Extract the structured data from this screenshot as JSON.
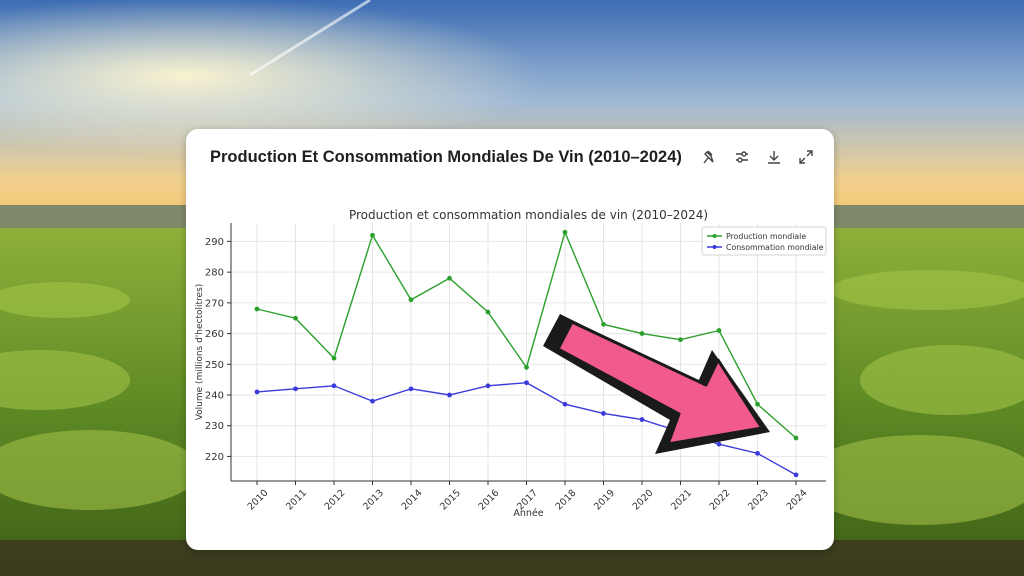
{
  "card": {
    "title": "Production Et Consommation Mondiales De Vin (2010–2024)",
    "tools": [
      "pin-icon",
      "settings-sliders-icon",
      "download-icon",
      "expand-icon"
    ]
  },
  "colors": {
    "production": "#2ca02c",
    "consumption": "#3b3bdc",
    "arrow_fill": "#f05a8c",
    "arrow_outline": "#1a1a1a",
    "sky_top": "#3f6fb5",
    "sky_horizon": "#f3c77a",
    "field": "#6f9a2c"
  },
  "chart_data": {
    "type": "line",
    "title": "Production et consommation mondiales de vin (2010–2024)",
    "xlabel": "Année",
    "ylabel": "Volume (millions d'hectolitres)",
    "x": [
      "2010",
      "2011",
      "2012",
      "2013",
      "2014",
      "2015",
      "2016",
      "2017",
      "2018",
      "2019",
      "2020",
      "2021",
      "2022",
      "2023",
      "2024"
    ],
    "ylim": [
      212,
      296
    ],
    "yticks": [
      220,
      230,
      240,
      250,
      260,
      270,
      280,
      290
    ],
    "grid": true,
    "legend_position": "top-right",
    "series": [
      {
        "name": "Production mondiale",
        "values": [
          268,
          265,
          252,
          292,
          271,
          278,
          267,
          249,
          293,
          263,
          260,
          258,
          261,
          237,
          226
        ]
      },
      {
        "name": "Consommation mondiale",
        "values": [
          241,
          242,
          243,
          238,
          242,
          240,
          243,
          244,
          237,
          234,
          232,
          228,
          224,
          221,
          214
        ]
      }
    ]
  }
}
